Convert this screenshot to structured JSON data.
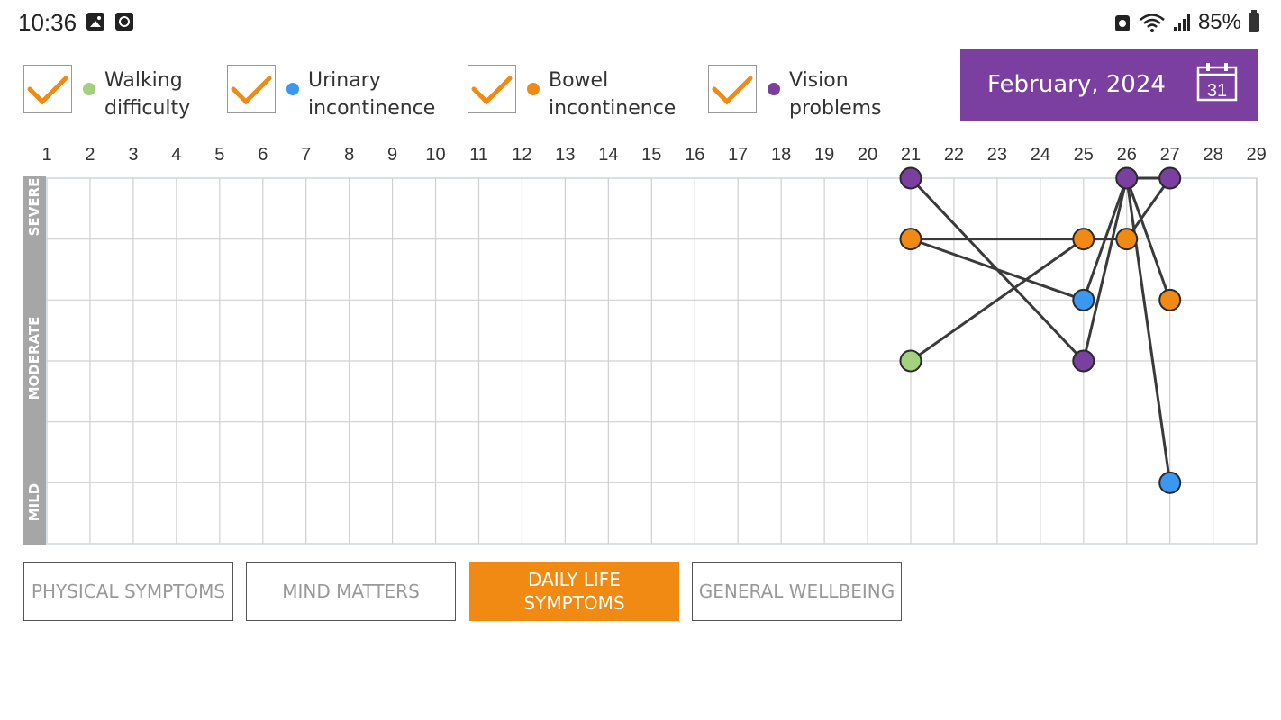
{
  "status_bar": {
    "time": "10:36",
    "battery": "85%"
  },
  "legend": [
    {
      "label": "Walking\ndifficulty",
      "color": "#a3d17e",
      "checked": true
    },
    {
      "label": "Urinary\nincontinence",
      "color": "#3a97f2",
      "checked": true
    },
    {
      "label": "Bowel\nincontinence",
      "color": "#f08a12",
      "checked": true
    },
    {
      "label": "Vision\nproblems",
      "color": "#7b3f9f",
      "checked": true
    }
  ],
  "month_selector": {
    "label": "February, 2024",
    "calendar_day": "31"
  },
  "chart_data": {
    "type": "line",
    "x_ticks": [
      "1",
      "2",
      "3",
      "4",
      "5",
      "6",
      "7",
      "8",
      "9",
      "10",
      "11",
      "12",
      "13",
      "14",
      "15",
      "16",
      "17",
      "18",
      "19",
      "20",
      "21",
      "22",
      "23",
      "24",
      "25",
      "26",
      "27",
      "28",
      "29"
    ],
    "y_band_labels": [
      "SEVERE",
      "MODERATE",
      "MILD"
    ],
    "series": [
      {
        "name": "Walking difficulty",
        "color": "#a3d17e",
        "points": [
          [
            21,
            3
          ]
        ]
      },
      {
        "name": "Urinary incontinence",
        "color": "#3a97f2",
        "points": [
          [
            25,
            4
          ],
          [
            27,
            1
          ]
        ]
      },
      {
        "name": "Bowel incontinence",
        "color": "#f08a12",
        "points": [
          [
            21,
            5
          ],
          [
            25,
            5
          ],
          [
            26,
            5
          ],
          [
            27,
            4
          ]
        ]
      },
      {
        "name": "Vision problems",
        "color": "#7b3f9f",
        "points": [
          [
            21,
            6
          ],
          [
            25,
            3
          ],
          [
            26,
            6
          ],
          [
            27,
            6
          ]
        ]
      }
    ],
    "connections": [
      [
        [
          21,
          6
        ],
        [
          25,
          3
        ]
      ],
      [
        [
          25,
          3
        ],
        [
          26,
          6
        ]
      ],
      [
        [
          26,
          6
        ],
        [
          27,
          6
        ]
      ],
      [
        [
          26,
          6
        ],
        [
          27,
          4
        ]
      ],
      [
        [
          26,
          6
        ],
        [
          27,
          1
        ]
      ],
      [
        [
          26,
          6
        ],
        [
          25,
          4
        ]
      ],
      [
        [
          21,
          5
        ],
        [
          25,
          5
        ]
      ],
      [
        [
          25,
          5
        ],
        [
          26,
          5
        ]
      ],
      [
        [
          21,
          5
        ],
        [
          25,
          4
        ]
      ],
      [
        [
          21,
          3
        ],
        [
          25,
          5
        ]
      ],
      [
        [
          26,
          5
        ],
        [
          27,
          6
        ]
      ]
    ],
    "y_levels": 7
  },
  "tabs": [
    {
      "label": "PHYSICAL SYMPTOMS",
      "active": false
    },
    {
      "label": "MIND MATTERS",
      "active": false
    },
    {
      "label": "DAILY LIFE\nSYMPTOMS",
      "active": true
    },
    {
      "label": "GENERAL WELLBEING",
      "active": false
    }
  ]
}
